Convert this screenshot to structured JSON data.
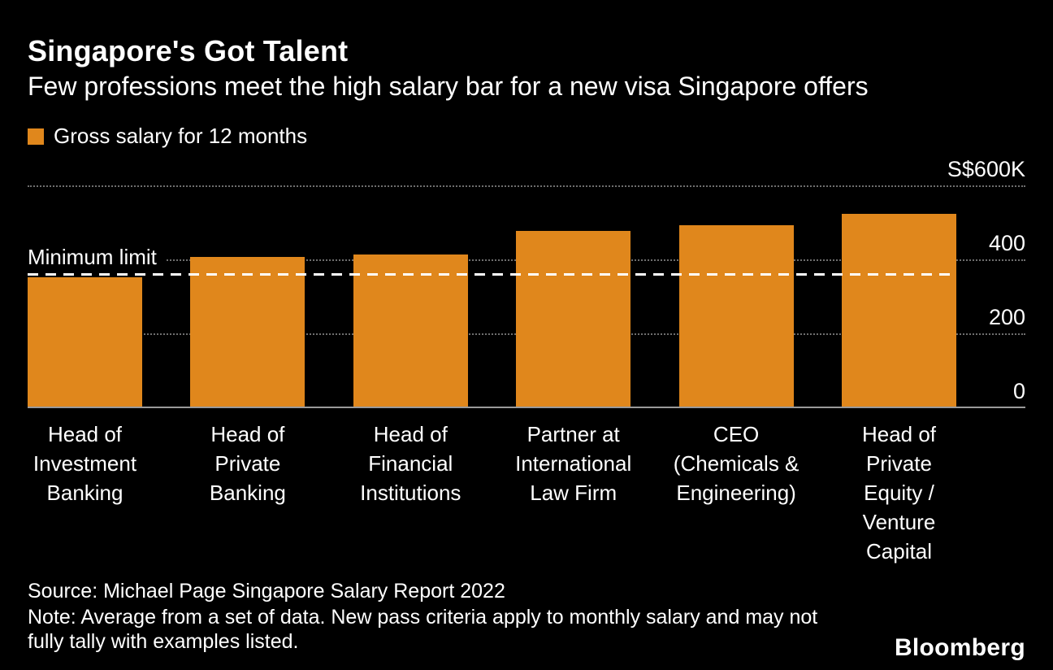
{
  "header": {
    "title": "Singapore's Got Talent",
    "subtitle": "Few professions meet the high salary bar for a new visa Singapore offers"
  },
  "legend": {
    "label": "Gross salary for 12 months"
  },
  "chart_data": {
    "type": "bar",
    "title": "Singapore's Got Talent",
    "subtitle": "Few professions meet the high salary bar for a new visa Singapore offers",
    "legend": [
      "Gross salary for 12 months"
    ],
    "legend_position": "top-left",
    "categories": [
      "Head of Investment Banking",
      "Head of Private Banking",
      "Head of Financial Institutions",
      "Partner at International Law Firm",
      "CEO (Chemicals & Engineering)",
      "Head of Private Equity / Venture Capital"
    ],
    "category_lines": [
      [
        "Head of",
        "Investment",
        "Banking"
      ],
      [
        "Head of",
        "Private",
        "Banking"
      ],
      [
        "Head of",
        "Financial",
        "Institutions"
      ],
      [
        "Partner at",
        "International",
        "Law Firm"
      ],
      [
        "CEO",
        "(Chemicals &",
        "Engineering)"
      ],
      [
        "Head of",
        "Private",
        "Equity /",
        "Venture",
        "Capital"
      ]
    ],
    "values": [
      350,
      405,
      410,
      475,
      490,
      520
    ],
    "value_unit": "S$ thousands",
    "ylim": [
      0,
      600
    ],
    "yticks": [
      {
        "value": 600,
        "label": "S$600K"
      },
      {
        "value": 400,
        "label": "400"
      },
      {
        "value": 200,
        "label": "200"
      },
      {
        "value": 0,
        "label": "0"
      }
    ],
    "reference_line": {
      "value": 360,
      "label": "Minimum limit"
    },
    "bar_color": "#E0871C",
    "grid": true
  },
  "footer": {
    "source": "Source: Michael Page Singapore Salary Report 2022",
    "note": "Note: Average from a set of data. New pass criteria apply to monthly salary and may not fully tally with examples listed.",
    "logo": "Bloomberg"
  },
  "colors": {
    "background": "#000000",
    "bar": "#E0871C",
    "text": "#FFFFFF",
    "gridline": "#6E6E6E",
    "reference_line": "#FFFFFF",
    "axis_line": "#9A9A9A"
  }
}
